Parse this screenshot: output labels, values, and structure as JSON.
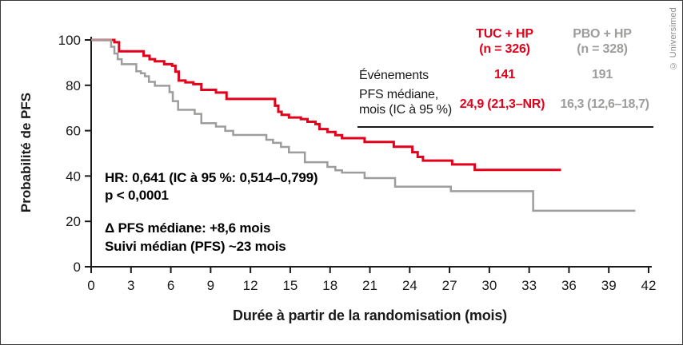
{
  "copyright": "© Universimed",
  "header_table": {
    "events_label": "Événements",
    "median_label_line1": "PFS médiane,",
    "median_label_line2": "mois (IC à 95 %)",
    "columns": [
      {
        "id": "tuc",
        "name": "TUC + HP",
        "n": "(n = 326)",
        "events": "141",
        "median": "24,9 (21,3–NR)",
        "color": "#e2001a"
      },
      {
        "id": "pbo",
        "name": "PBO + HP",
        "n": "(n = 328)",
        "events": "191",
        "median": "16,3 (12,6–18,7)",
        "color": "#9d9d9c"
      }
    ]
  },
  "annotations": {
    "hr": "HR: 0,641 (IC à 95 %: 0,514–0,799)",
    "p": "p < 0,0001",
    "delta": "Δ PFS médiane: +8,6 mois",
    "followup": "Suivi médian (PFS) ~23 mois"
  },
  "chart_data": {
    "type": "line",
    "subtype": "kaplan-meier-step",
    "title": "",
    "xlabel": "Durée à partir de la randomisation (mois)",
    "ylabel": "Probabilité de PFS",
    "xlim": [
      0,
      42
    ],
    "ylim": [
      0,
      100
    ],
    "xticks": [
      0,
      3,
      6,
      9,
      12,
      15,
      18,
      21,
      24,
      27,
      30,
      33,
      36,
      39,
      42
    ],
    "yticks": [
      0,
      20,
      40,
      60,
      80,
      100
    ],
    "grid": false,
    "axis_color": "#1a1a1a",
    "series": [
      {
        "id": "tuc",
        "name": "TUC + HP (n = 326)",
        "color": "#e2001a",
        "median_months": 24.9,
        "events": 141,
        "step_points": [
          [
            0,
            100
          ],
          [
            1.75,
            99
          ],
          [
            2.1,
            95
          ],
          [
            3.95,
            93
          ],
          [
            4.4,
            91.5
          ],
          [
            4.8,
            90.6
          ],
          [
            5.5,
            89.3
          ],
          [
            6.1,
            88.6
          ],
          [
            6.35,
            86
          ],
          [
            6.6,
            82.1
          ],
          [
            7.1,
            81.3
          ],
          [
            7.7,
            80.5
          ],
          [
            8.3,
            78
          ],
          [
            9.4,
            76.8
          ],
          [
            10.2,
            74
          ],
          [
            13.85,
            71
          ],
          [
            14.1,
            68.3
          ],
          [
            14.35,
            67
          ],
          [
            14.9,
            65.8
          ],
          [
            15.8,
            65.1
          ],
          [
            16.3,
            63.9
          ],
          [
            16.9,
            62.9
          ],
          [
            17.2,
            60.7
          ],
          [
            17.8,
            59.4
          ],
          [
            18.4,
            58
          ],
          [
            18.9,
            56.7
          ],
          [
            20.6,
            55
          ],
          [
            22.8,
            52.9
          ],
          [
            24.2,
            50.5
          ],
          [
            24.6,
            48.4
          ],
          [
            25,
            46.8
          ],
          [
            27.2,
            45.1
          ],
          [
            28.9,
            42.7
          ],
          [
            35.4,
            42.7
          ]
        ]
      },
      {
        "id": "pbo",
        "name": "PBO + HP (n = 328)",
        "color": "#9d9d9c",
        "median_months": 16.3,
        "events": 191,
        "step_points": [
          [
            0,
            100
          ],
          [
            1.5,
            97
          ],
          [
            1.75,
            94
          ],
          [
            2,
            91.5
          ],
          [
            2.3,
            89.3
          ],
          [
            3.4,
            86.2
          ],
          [
            3.75,
            85.3
          ],
          [
            4.05,
            84
          ],
          [
            4.35,
            81.5
          ],
          [
            4.8,
            79.8
          ],
          [
            5.9,
            77
          ],
          [
            6.15,
            73
          ],
          [
            6.55,
            69.2
          ],
          [
            7.8,
            67.4
          ],
          [
            8.3,
            63.3
          ],
          [
            9.4,
            61.8
          ],
          [
            10.1,
            59.9
          ],
          [
            10.7,
            58.1
          ],
          [
            13.2,
            56
          ],
          [
            13.7,
            54.6
          ],
          [
            14.3,
            52.8
          ],
          [
            14.9,
            50.4
          ],
          [
            16.1,
            46.1
          ],
          [
            17.8,
            44
          ],
          [
            18.4,
            42.5
          ],
          [
            18.9,
            41.5
          ],
          [
            20.6,
            39.1
          ],
          [
            22.9,
            35.3
          ],
          [
            27.1,
            33.3
          ],
          [
            33.3,
            24.7
          ],
          [
            41,
            24.7
          ]
        ]
      }
    ]
  }
}
